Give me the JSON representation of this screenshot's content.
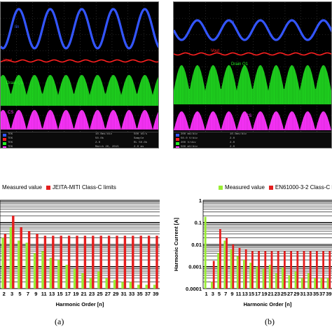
{
  "scope_a": {
    "labels": {
      "iin": "Iin",
      "vout": "Vout",
      "drain": "Drain Q1",
      "cs": "CS"
    },
    "status_left": [
      "TEK",
      "TEK",
      "TEK",
      "TEK"
    ],
    "status_mid": [
      "10.0ms/div",
      "50.0k",
      "2.0",
      "March 20, 2015"
    ],
    "status_right": [
      "500 kS/s",
      "Sample",
      "RL 50.0k",
      "2.0 ms"
    ]
  },
  "scope_b": {
    "labels": {
      "iin": "Iin",
      "vout": "Vout",
      "drain": "Drain Q1",
      "cs": "CS"
    },
    "status_left": [
      "200 mA/div",
      "50.0 V/div",
      "200 V/div",
      "500 mV/div"
    ],
    "status_mid": [
      "10.0ms/div",
      "2.0",
      "2.0",
      "2.0"
    ],
    "status_right": [
      "",
      "",
      "",
      ""
    ]
  },
  "colors": {
    "iin": "#3355ff",
    "vout": "#ff2020",
    "drain": "#22ee22",
    "cs": "#ff33ff",
    "measured": "#99ee33",
    "limit": "#e41e1e"
  },
  "chart_data": [
    {
      "type": "bar",
      "panel": "(a)",
      "legend": [
        "Measured value",
        "JEITA-MITI Class-C limits"
      ],
      "xlabel": "Harmonic Order [n]",
      "ylabel": "",
      "yscale": "log",
      "ylim": [
        0.0001,
        1
      ],
      "grid": true,
      "tick_labels": [
        "2",
        "3",
        "5",
        "7",
        "9",
        "11",
        "13",
        "15",
        "17",
        "19",
        "21",
        "23",
        "25",
        "27",
        "29",
        "31",
        "33",
        "35",
        "37",
        "39"
      ],
      "series": [
        {
          "name": "Measured value",
          "color": "#99ee33",
          "values": [
            0.02,
            0.06,
            0.015,
            0.012,
            0.004,
            0.005,
            0.0025,
            0.002,
            0.0012,
            0.0008,
            0.0005,
            0.0003,
            0.0006,
            0.0003,
            0.00025,
            0.0002,
            0.0002,
            0.00015,
            0.00015,
            0.00015
          ]
        },
        {
          "name": "JEITA-MITI Class-C limits",
          "color": "#e41e1e",
          "values": [
            0.03,
            0.2,
            0.06,
            0.04,
            0.03,
            0.025,
            0.025,
            0.025,
            0.025,
            0.025,
            0.025,
            0.025,
            0.025,
            0.025,
            0.025,
            0.025,
            0.025,
            0.025,
            0.025,
            0.025
          ]
        }
      ]
    },
    {
      "type": "bar",
      "panel": "(b)",
      "legend": [
        "Measured value",
        "EN61000-3-2 Class-C limits"
      ],
      "xlabel": "Harmonic Order [n]",
      "ylabel": "Harmonic Current [A]",
      "yscale": "log",
      "ylim": [
        0.0001,
        1
      ],
      "grid": true,
      "ytick_labels": [
        "1",
        "0.1",
        "0.01",
        "0.001",
        "0.0001"
      ],
      "tick_labels": [
        "1",
        "3",
        "5",
        "7",
        "9",
        "11",
        "13",
        "15",
        "17",
        "19",
        "21",
        "23",
        "25",
        "27",
        "29",
        "31",
        "33",
        "35",
        "37",
        "39"
      ],
      "series": [
        {
          "name": "Measured value",
          "color": "#99ee33",
          "values": [
            0.18,
            0.0002,
            0.004,
            0.015,
            0.006,
            0.003,
            0.002,
            0.0015,
            0.001,
            0.0008,
            0.0012,
            0.0005,
            0.0009,
            0.0004,
            0.0006,
            0.0003,
            0.0005,
            0.0003,
            0.0003,
            0.0003
          ]
        },
        {
          "name": "EN61000-3-2 Class-C limits",
          "color": "#e41e1e",
          "values": [
            0,
            0.0018,
            0.05,
            0.02,
            0.01,
            0.007,
            0.006,
            0.005,
            0.005,
            0.005,
            0.005,
            0.005,
            0.005,
            0.005,
            0.005,
            0.005,
            0.005,
            0.005,
            0.005,
            0.005
          ]
        }
      ]
    }
  ],
  "captions": {
    "a": "(a)",
    "b": "(b)"
  }
}
